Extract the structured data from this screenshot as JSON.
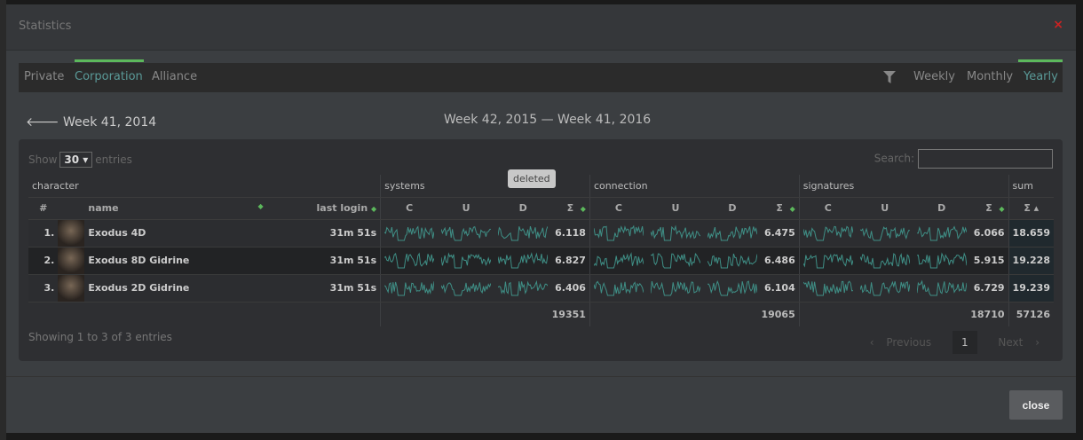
{
  "modal": {
    "title": "Statistics",
    "close_x": "×",
    "close_button": "close"
  },
  "tabs": [
    "Private",
    "Corporation",
    "Alliance"
  ],
  "active_tab": "Corporation",
  "periods": [
    "Weekly",
    "Monthly",
    "Yearly"
  ],
  "active_period": "Yearly",
  "nav": {
    "previous": "Week 41, 2014",
    "range": "Week 42, 2015 — Week 41, 2016"
  },
  "table_controls": {
    "show": "Show",
    "entries_value": "30",
    "entries": "entries",
    "search_label": "Search:",
    "search_value": ""
  },
  "headers": {
    "character": "character",
    "systems": "systems",
    "connection": "connection",
    "signatures": "signatures",
    "sum": "sum",
    "num": "#",
    "name": "name",
    "last_login": "last login",
    "c": "C",
    "u": "U",
    "d": "D",
    "sigma": "Σ"
  },
  "rows": [
    {
      "rank": "1.",
      "name": "Exodus 4D",
      "last_login": "31m 51s",
      "systems": "6.118",
      "connection": "6.475",
      "signatures": "6.066",
      "sum": "18.659"
    },
    {
      "rank": "2.",
      "name": "Exodus 8D Gidrine",
      "last_login": "31m 51s",
      "systems": "6.827",
      "connection": "6.486",
      "signatures": "5.915",
      "sum": "19.228"
    },
    {
      "rank": "3.",
      "name": "Exodus 2D Gidrine",
      "last_login": "31m 51s",
      "systems": "6.406",
      "connection": "6.104",
      "signatures": "6.729",
      "sum": "19.239"
    }
  ],
  "totals": {
    "systems": "19351",
    "connection": "19065",
    "signatures": "18710",
    "sum": "57126"
  },
  "tooltip": "deleted",
  "info": "Showing 1 to 3 of 3 entries",
  "pagination": {
    "previous": "Previous",
    "page": "1",
    "next": "Next"
  },
  "colors": {
    "accent": "#5a9a98",
    "underline": "#5cb85c",
    "sparkline": "#3f8f86",
    "close_x": "#cc2222"
  }
}
